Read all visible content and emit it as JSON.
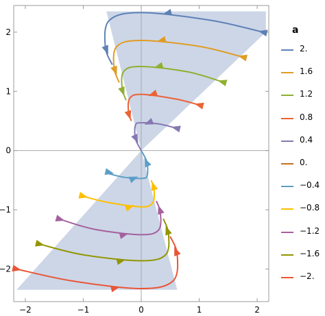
{
  "chart_data": {
    "type": "line",
    "title": "",
    "xlabel": "",
    "ylabel": "",
    "xlim": [
      -2.2,
      2.2
    ],
    "ylim": [
      -2.55,
      2.45
    ],
    "x_ticks": [
      -2,
      -1,
      0,
      1,
      2
    ],
    "y_ticks": [
      -2,
      -1,
      0,
      1,
      2
    ],
    "x_tick_labels": [
      "−2",
      "−1",
      "0",
      "1",
      "2"
    ],
    "y_tick_labels": [
      "−2",
      "−1",
      "0",
      "1",
      "2"
    ],
    "shaded_region": {
      "color": "#c9d4e6",
      "polygon": [
        [
          2.15,
          2.0
        ],
        [
          0,
          0
        ],
        [
          0.62,
          -2.35
        ],
        [
          -2.15,
          -2.35
        ],
        [
          0,
          0
        ],
        [
          -0.6,
          2.35
        ],
        [
          2.15,
          2.35
        ]
      ]
    },
    "legend": {
      "title": "a",
      "position": "right",
      "entries": [
        "2.",
        "1.6",
        "1.2",
        "0.8",
        "0.4",
        "0.",
        "−0.4",
        "−0.8",
        "−1.2",
        "−1.6",
        "−2."
      ]
    },
    "series": [
      {
        "name": "2.",
        "color": "#5e81b5",
        "points": [
          [
            2.1,
            2.0
          ],
          [
            1.2,
            2.2
          ],
          [
            0.0,
            2.33
          ],
          [
            -0.55,
            2.2
          ],
          [
            -0.62,
            1.75
          ],
          [
            -0.5,
            1.45
          ]
        ],
        "arrows": [
          [
            2.1,
            2.0
          ],
          [
            0.45,
            2.32
          ],
          [
            -0.6,
            1.7
          ]
        ]
      },
      {
        "name": "1.6",
        "color": "#e19c24",
        "points": [
          [
            1.75,
            1.58
          ],
          [
            1.0,
            1.76
          ],
          [
            0.0,
            1.86
          ],
          [
            -0.42,
            1.76
          ],
          [
            -0.47,
            1.4
          ],
          [
            -0.38,
            1.15
          ]
        ],
        "arrows": [
          [
            1.75,
            1.58
          ],
          [
            0.35,
            1.86
          ],
          [
            -0.45,
            1.35
          ]
        ]
      },
      {
        "name": "1.2",
        "color": "#8fb032",
        "points": [
          [
            1.4,
            1.16
          ],
          [
            0.8,
            1.33
          ],
          [
            0.0,
            1.42
          ],
          [
            -0.3,
            1.34
          ],
          [
            -0.33,
            1.05
          ],
          [
            -0.26,
            0.85
          ]
        ],
        "arrows": [
          [
            1.4,
            1.16
          ],
          [
            0.3,
            1.42
          ],
          [
            -0.32,
            1.0
          ]
        ]
      },
      {
        "name": "0.8",
        "color": "#eb6235",
        "points": [
          [
            1.0,
            0.77
          ],
          [
            0.6,
            0.87
          ],
          [
            0.0,
            0.95
          ],
          [
            -0.2,
            0.88
          ],
          [
            -0.22,
            0.65
          ],
          [
            -0.17,
            0.5
          ]
        ],
        "arrows": [
          [
            1.0,
            0.77
          ],
          [
            0.2,
            0.95
          ],
          [
            -0.21,
            0.6
          ]
        ]
      },
      {
        "name": "0.4",
        "color": "#8778b3",
        "points": [
          [
            0.6,
            0.38
          ],
          [
            0.3,
            0.45
          ],
          [
            0.0,
            0.47
          ],
          [
            -0.1,
            0.43
          ],
          [
            -0.1,
            0.2
          ],
          [
            0.0,
            0.0
          ]
        ],
        "arrows": [
          [
            0.6,
            0.38
          ],
          [
            0.13,
            0.47
          ],
          [
            -0.09,
            0.2
          ]
        ]
      },
      {
        "name": "0.",
        "color": "#c56e1a",
        "points": [
          [
            0.0,
            0.0
          ],
          [
            0.0,
            0.0
          ]
        ],
        "arrows": []
      },
      {
        "name": "−0.4",
        "color": "#5d9ec7",
        "points": [
          [
            -0.6,
            -0.38
          ],
          [
            -0.3,
            -0.45
          ],
          [
            0.0,
            -0.47
          ],
          [
            0.1,
            -0.43
          ],
          [
            0.1,
            -0.2
          ],
          [
            0.0,
            0.0
          ]
        ],
        "arrows": [
          [
            -0.55,
            -0.37
          ],
          [
            -0.13,
            -0.47
          ],
          [
            0.09,
            -0.2
          ]
        ]
      },
      {
        "name": "−0.8",
        "color": "#ffbf00",
        "points": [
          [
            -1.0,
            -0.77
          ],
          [
            -0.6,
            -0.87
          ],
          [
            0.0,
            -0.95
          ],
          [
            0.2,
            -0.88
          ],
          [
            0.22,
            -0.65
          ],
          [
            0.17,
            -0.5
          ]
        ],
        "arrows": [
          [
            -1.0,
            -0.77
          ],
          [
            -0.2,
            -0.95
          ],
          [
            0.21,
            -0.6
          ]
        ]
      },
      {
        "name": "−1.2",
        "color": "#a5609d",
        "points": [
          [
            -1.4,
            -1.16
          ],
          [
            -0.8,
            -1.33
          ],
          [
            0.0,
            -1.42
          ],
          [
            0.3,
            -1.34
          ],
          [
            0.33,
            -1.05
          ],
          [
            0.26,
            -0.85
          ]
        ],
        "arrows": [
          [
            -1.4,
            -1.16
          ],
          [
            -0.3,
            -1.42
          ],
          [
            0.32,
            -1.0
          ]
        ]
      },
      {
        "name": "−1.6",
        "color": "#929600",
        "points": [
          [
            -1.75,
            -1.58
          ],
          [
            -1.0,
            -1.76
          ],
          [
            0.0,
            -1.86
          ],
          [
            0.42,
            -1.76
          ],
          [
            0.47,
            -1.4
          ],
          [
            0.38,
            -1.15
          ]
        ],
        "arrows": [
          [
            -1.75,
            -1.58
          ],
          [
            -0.35,
            -1.86
          ],
          [
            0.45,
            -1.35
          ]
        ]
      },
      {
        "name": "−2.",
        "color": "#e95536",
        "points": [
          [
            -2.15,
            -2.0
          ],
          [
            -1.2,
            -2.2
          ],
          [
            0.0,
            -2.33
          ],
          [
            0.55,
            -2.2
          ],
          [
            0.62,
            -1.75
          ],
          [
            0.5,
            -1.45
          ]
        ],
        "arrows": [
          [
            -2.15,
            -2.0
          ],
          [
            -0.45,
            -2.32
          ],
          [
            0.6,
            -1.7
          ]
        ]
      }
    ]
  }
}
